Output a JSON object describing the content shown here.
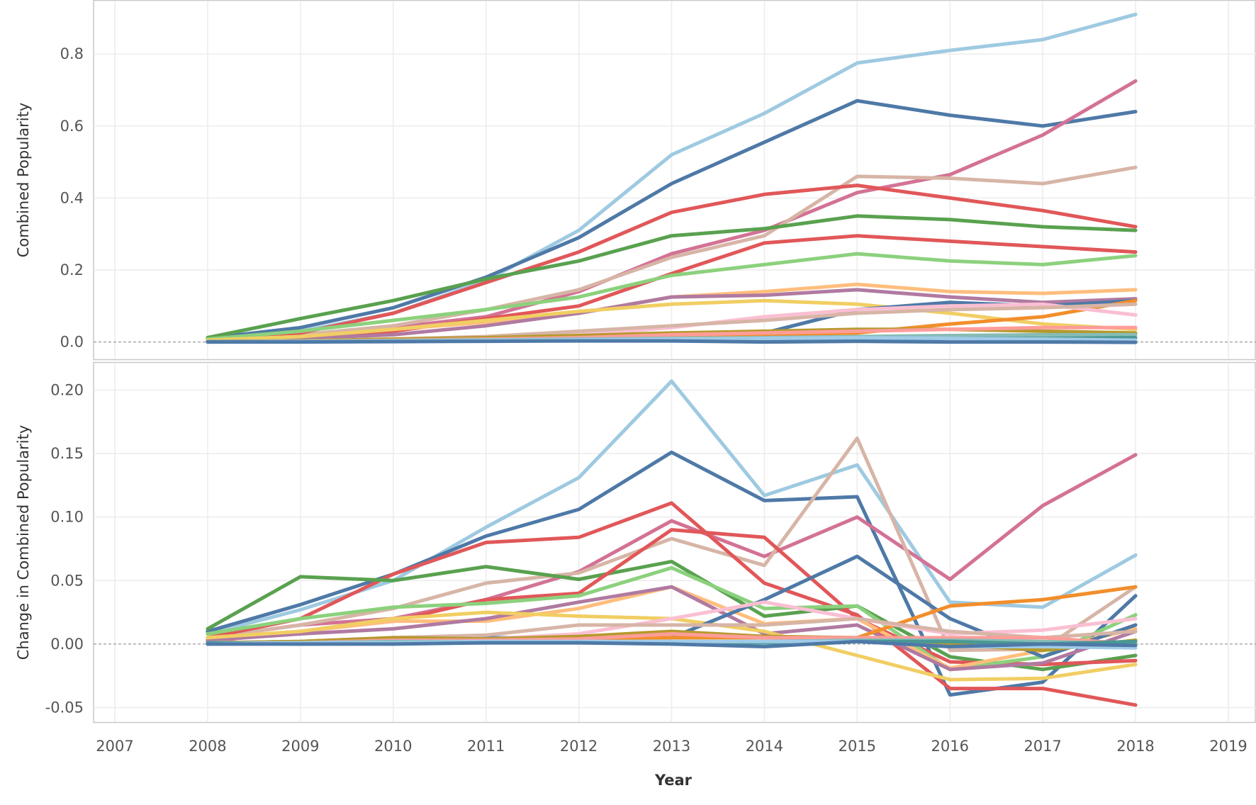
{
  "chart_data": [
    {
      "type": "line",
      "ylabel": "Combined Popularity",
      "xlim": [
        2007,
        2019
      ],
      "ylim": [
        -0.05,
        0.95
      ],
      "yticks": [
        0.0,
        0.2,
        0.4,
        0.6,
        0.8
      ],
      "ytick_labels": [
        "0.0",
        "0.2",
        "0.4",
        "0.6",
        "0.8"
      ],
      "grid": true,
      "zero_line": true,
      "x": [
        2008,
        2009,
        2010,
        2011,
        2012,
        2013,
        2014,
        2015,
        2016,
        2017,
        2018
      ],
      "series": [
        {
          "color": "#9ecae1",
          "values": [
            0.01,
            0.03,
            0.08,
            0.17,
            0.31,
            0.52,
            0.635,
            0.775,
            0.81,
            0.84,
            0.91
          ]
        },
        {
          "color": "#4e79a7",
          "values": [
            0.01,
            0.04,
            0.095,
            0.18,
            0.29,
            0.44,
            0.555,
            0.67,
            0.63,
            0.6,
            0.64
          ]
        },
        {
          "color": "#d37295",
          "values": [
            0.005,
            0.02,
            0.04,
            0.07,
            0.14,
            0.245,
            0.31,
            0.415,
            0.465,
            0.575,
            0.725
          ]
        },
        {
          "color": "#d7b5a6",
          "values": [
            0.005,
            0.02,
            0.045,
            0.09,
            0.145,
            0.235,
            0.295,
            0.46,
            0.455,
            0.44,
            0.485
          ]
        },
        {
          "color": "#e15759",
          "values": [
            0.005,
            0.025,
            0.08,
            0.165,
            0.25,
            0.36,
            0.41,
            0.435,
            0.4,
            0.365,
            0.32
          ]
        },
        {
          "color": "#59a14f",
          "values": [
            0.012,
            0.065,
            0.115,
            0.175,
            0.225,
            0.295,
            0.315,
            0.35,
            0.34,
            0.32,
            0.31
          ]
        },
        {
          "color": "#e15759",
          "values": [
            0.002,
            0.008,
            0.03,
            0.065,
            0.1,
            0.19,
            0.275,
            0.295,
            0.28,
            0.265,
            0.25
          ]
        },
        {
          "color": "#8cd17d",
          "values": [
            0.008,
            0.03,
            0.06,
            0.09,
            0.125,
            0.185,
            0.215,
            0.245,
            0.225,
            0.215,
            0.24
          ]
        },
        {
          "color": "#ffbe7d",
          "values": [
            0.005,
            0.015,
            0.035,
            0.055,
            0.08,
            0.125,
            0.14,
            0.16,
            0.14,
            0.135,
            0.145
          ]
        },
        {
          "color": "#b07aa1",
          "values": [
            0.003,
            0.01,
            0.02,
            0.045,
            0.08,
            0.125,
            0.13,
            0.145,
            0.125,
            0.11,
            0.12
          ]
        },
        {
          "color": "#f1ce63",
          "values": [
            0.005,
            0.015,
            0.035,
            0.06,
            0.085,
            0.105,
            0.115,
            0.105,
            0.08,
            0.05,
            0.035
          ]
        },
        {
          "color": "#4e79a7",
          "values": [
            0.001,
            0.002,
            0.005,
            0.01,
            0.015,
            0.02,
            0.025,
            0.09,
            0.11,
            0.1,
            0.115
          ]
        },
        {
          "color": "#f28e2b",
          "values": [
            0.001,
            0.002,
            0.004,
            0.006,
            0.01,
            0.015,
            0.02,
            0.025,
            0.05,
            0.07,
            0.115
          ]
        },
        {
          "color": "#fabfd2",
          "values": [
            0.001,
            0.003,
            0.008,
            0.012,
            0.02,
            0.04,
            0.07,
            0.09,
            0.1,
            0.105,
            0.075
          ]
        },
        {
          "color": "#d7b5a6",
          "values": [
            0.001,
            0.003,
            0.008,
            0.015,
            0.03,
            0.045,
            0.06,
            0.08,
            0.09,
            0.095,
            0.105
          ]
        },
        {
          "color": "#b6992d",
          "values": [
            0.001,
            0.003,
            0.008,
            0.012,
            0.018,
            0.025,
            0.03,
            0.035,
            0.035,
            0.03,
            0.025
          ]
        },
        {
          "color": "#ff9d9a",
          "values": [
            0.001,
            0.002,
            0.005,
            0.008,
            0.012,
            0.02,
            0.025,
            0.03,
            0.035,
            0.04,
            0.04
          ]
        },
        {
          "color": "#86bcb6",
          "values": [
            0.001,
            0.002,
            0.004,
            0.006,
            0.008,
            0.01,
            0.012,
            0.015,
            0.018,
            0.02,
            0.02
          ]
        },
        {
          "color": "#499894",
          "values": [
            0.001,
            0.001,
            0.002,
            0.003,
            0.004,
            0.005,
            0.006,
            0.008,
            0.01,
            0.01,
            0.012
          ]
        },
        {
          "color": "#a0cbe8",
          "values": [
            0.0,
            0.001,
            0.002,
            0.004,
            0.006,
            0.008,
            0.01,
            0.012,
            0.01,
            0.008,
            0.005
          ]
        },
        {
          "color": "#4e79a7",
          "values": [
            0.0,
            0.0,
            0.001,
            0.002,
            0.003,
            0.003,
            0.0,
            0.002,
            0.0,
            0.0,
            -0.001
          ]
        }
      ]
    },
    {
      "type": "line",
      "ylabel": "Change in Combined Popularity",
      "xlabel": "Year",
      "xlim": [
        2007,
        2019
      ],
      "ylim": [
        -0.062,
        0.222
      ],
      "yticks": [
        -0.05,
        0.0,
        0.05,
        0.1,
        0.15,
        0.2
      ],
      "ytick_labels": [
        "-0.05",
        "0.00",
        "0.05",
        "0.10",
        "0.15",
        "0.20"
      ],
      "xticks": [
        2007,
        2008,
        2009,
        2010,
        2011,
        2012,
        2013,
        2014,
        2015,
        2016,
        2017,
        2018,
        2019
      ],
      "xtick_labels": [
        "2007",
        "2008",
        "2009",
        "2010",
        "2011",
        "2012",
        "2013",
        "2014",
        "2015",
        "2016",
        "2017",
        "2018",
        "2019"
      ],
      "grid": true,
      "zero_line": true,
      "x": [
        2008,
        2009,
        2010,
        2011,
        2012,
        2013,
        2014,
        2015,
        2016,
        2017,
        2018
      ],
      "series": [
        {
          "color": "#9ecae1",
          "values": [
            0.008,
            0.027,
            0.05,
            0.092,
            0.131,
            0.207,
            0.117,
            0.141,
            0.033,
            0.029,
            0.07
          ]
        },
        {
          "color": "#4e79a7",
          "values": [
            0.01,
            0.031,
            0.055,
            0.085,
            0.106,
            0.151,
            0.113,
            0.116,
            -0.04,
            -0.03,
            0.038
          ]
        },
        {
          "color": "#d37295",
          "values": [
            0.005,
            0.015,
            0.02,
            0.035,
            0.057,
            0.097,
            0.069,
            0.1,
            0.051,
            0.109,
            0.149
          ]
        },
        {
          "color": "#d7b5a6",
          "values": [
            0.005,
            0.015,
            0.028,
            0.048,
            0.056,
            0.083,
            0.062,
            0.162,
            -0.005,
            -0.004,
            0.045
          ]
        },
        {
          "color": "#e15759",
          "values": [
            0.005,
            0.02,
            0.055,
            0.08,
            0.084,
            0.111,
            0.048,
            0.023,
            -0.035,
            -0.035,
            -0.048
          ]
        },
        {
          "color": "#59a14f",
          "values": [
            0.012,
            0.053,
            0.05,
            0.061,
            0.051,
            0.065,
            0.022,
            0.03,
            -0.01,
            -0.02,
            -0.009
          ]
        },
        {
          "color": "#e15759",
          "values": [
            0.002,
            0.01,
            0.018,
            0.035,
            0.04,
            0.09,
            0.084,
            0.02,
            -0.014,
            -0.016,
            -0.013
          ]
        },
        {
          "color": "#8cd17d",
          "values": [
            0.008,
            0.02,
            0.029,
            0.032,
            0.038,
            0.06,
            0.028,
            0.03,
            -0.02,
            -0.01,
            0.023
          ]
        },
        {
          "color": "#ffbe7d",
          "values": [
            0.005,
            0.01,
            0.018,
            0.018,
            0.028,
            0.045,
            0.016,
            0.02,
            -0.019,
            -0.005,
            0.012
          ]
        },
        {
          "color": "#b07aa1",
          "values": [
            0.003,
            0.008,
            0.012,
            0.02,
            0.033,
            0.045,
            0.008,
            0.015,
            -0.02,
            -0.015,
            0.01
          ]
        },
        {
          "color": "#f1ce63",
          "values": [
            0.005,
            0.01,
            0.02,
            0.025,
            0.022,
            0.02,
            0.01,
            -0.009,
            -0.028,
            -0.027,
            -0.016
          ]
        },
        {
          "color": "#4e79a7",
          "values": [
            0.001,
            0.001,
            0.003,
            0.005,
            0.005,
            0.005,
            0.035,
            0.069,
            0.02,
            -0.01,
            0.015
          ]
        },
        {
          "color": "#f28e2b",
          "values": [
            0.001,
            0.001,
            0.002,
            0.002,
            0.004,
            0.005,
            0.005,
            0.005,
            0.03,
            0.035,
            0.045
          ]
        },
        {
          "color": "#fabfd2",
          "values": [
            0.001,
            0.002,
            0.005,
            0.004,
            0.008,
            0.02,
            0.033,
            0.02,
            0.008,
            0.011,
            0.02
          ]
        },
        {
          "color": "#d7b5a6",
          "values": [
            0.001,
            0.002,
            0.005,
            0.007,
            0.015,
            0.015,
            0.015,
            0.02,
            0.01,
            0.005,
            0.01
          ]
        },
        {
          "color": "#b6992d",
          "values": [
            0.001,
            0.002,
            0.005,
            0.004,
            0.006,
            0.01,
            0.006,
            0.005,
            0.0,
            -0.005,
            0.003
          ]
        },
        {
          "color": "#ff9d9a",
          "values": [
            0.001,
            0.001,
            0.003,
            0.003,
            0.004,
            0.008,
            0.005,
            0.005,
            0.005,
            0.005,
            0.0
          ]
        },
        {
          "color": "#86bcb6",
          "values": [
            0.001,
            0.001,
            0.002,
            0.002,
            0.002,
            0.002,
            0.002,
            0.003,
            0.003,
            0.002,
            0.0
          ]
        },
        {
          "color": "#499894",
          "values": [
            0.001,
            0.0,
            0.001,
            0.001,
            0.001,
            0.001,
            0.001,
            0.002,
            0.002,
            0.0,
            0.002
          ]
        },
        {
          "color": "#a0cbe8",
          "values": [
            0.0,
            0.001,
            0.001,
            0.002,
            0.002,
            0.002,
            0.002,
            0.002,
            -0.002,
            -0.002,
            -0.003
          ]
        },
        {
          "color": "#4e79a7",
          "values": [
            0.0,
            0.0,
            0.0,
            0.001,
            0.001,
            0.0,
            -0.002,
            0.002,
            -0.002,
            0.0,
            -0.001
          ]
        }
      ]
    }
  ]
}
